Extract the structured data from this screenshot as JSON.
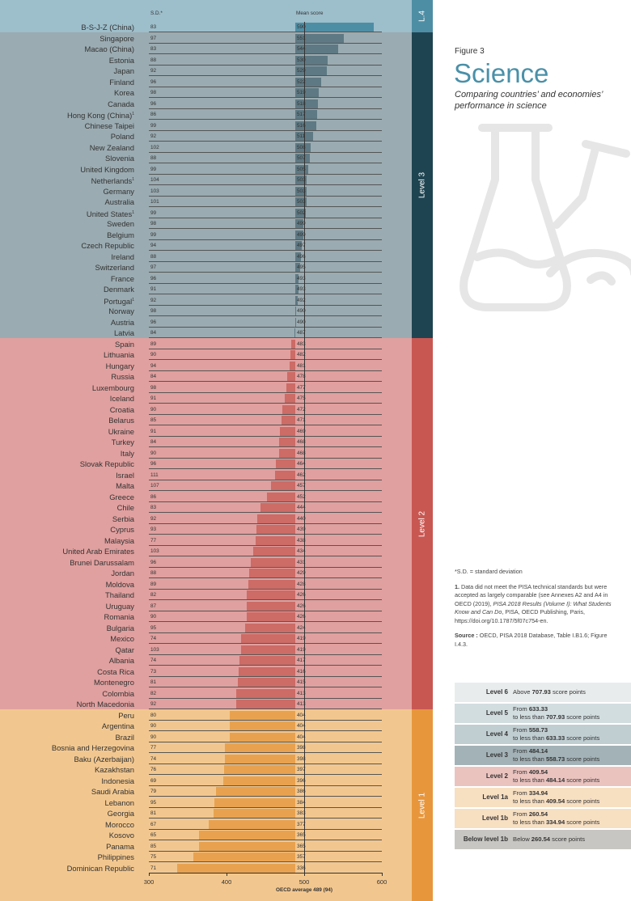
{
  "header": {
    "sd_label": "S.D.*",
    "mean_label": "Mean score"
  },
  "figure": {
    "label": "Figure 3",
    "title": "Science",
    "subtitle": "Comparing countries’ and economies’ performance in science"
  },
  "levels_side": [
    "L.4",
    "Level 3",
    "Level 2",
    "Level 1"
  ],
  "chart_data": {
    "type": "bar",
    "title": "Science",
    "xlabel": "OECD average 489 (94)",
    "xlim": [
      300,
      600
    ],
    "x_ticks": [
      "300",
      "400",
      "500",
      "600"
    ],
    "oecd_average": 489,
    "countries": [
      {
        "name": "B-S-J-Z (China)",
        "sd": "83",
        "mean": 590,
        "level": "L.4",
        "note": false
      },
      {
        "name": "Singapore",
        "sd": "97",
        "mean": 551,
        "level": "Level 3",
        "note": false
      },
      {
        "name": "Macao (China)",
        "sd": "83",
        "mean": 544,
        "level": "Level 3",
        "note": false
      },
      {
        "name": "Estonia",
        "sd": "88",
        "mean": 530,
        "level": "Level 3",
        "note": false
      },
      {
        "name": "Japan",
        "sd": "92",
        "mean": 529,
        "level": "Level 3",
        "note": false
      },
      {
        "name": "Finland",
        "sd": "96",
        "mean": 522,
        "level": "Level 3",
        "note": false
      },
      {
        "name": "Korea",
        "sd": "98",
        "mean": 519,
        "level": "Level 3",
        "note": false
      },
      {
        "name": "Canada",
        "sd": "96",
        "mean": 518,
        "level": "Level 3",
        "note": false
      },
      {
        "name": "Hong Kong (China)",
        "sd": "86",
        "mean": 517,
        "level": "Level 3",
        "note": true
      },
      {
        "name": "Chinese Taipei",
        "sd": "99",
        "mean": 516,
        "level": "Level 3",
        "note": false
      },
      {
        "name": "Poland",
        "sd": "92",
        "mean": 511,
        "level": "Level 3",
        "note": false
      },
      {
        "name": "New Zealand",
        "sd": "102",
        "mean": 508,
        "level": "Level 3",
        "note": false
      },
      {
        "name": "Slovenia",
        "sd": "88",
        "mean": 507,
        "level": "Level 3",
        "note": false
      },
      {
        "name": "United Kingdom",
        "sd": "99",
        "mean": 505,
        "level": "Level 3",
        "note": false
      },
      {
        "name": "Netherlands",
        "sd": "104",
        "mean": 503,
        "level": "Level 3",
        "note": true
      },
      {
        "name": "Germany",
        "sd": "103",
        "mean": 503,
        "level": "Level 3",
        "note": false
      },
      {
        "name": "Australia",
        "sd": "101",
        "mean": 503,
        "level": "Level 3",
        "note": false
      },
      {
        "name": "United States",
        "sd": "99",
        "mean": 502,
        "level": "Level 3",
        "note": true
      },
      {
        "name": "Sweden",
        "sd": "98",
        "mean": 499,
        "level": "Level 3",
        "note": false
      },
      {
        "name": "Belgium",
        "sd": "99",
        "mean": 499,
        "level": "Level 3",
        "note": false
      },
      {
        "name": "Czech Republic",
        "sd": "94",
        "mean": 497,
        "level": "Level 3",
        "note": false
      },
      {
        "name": "Ireland",
        "sd": "88",
        "mean": 496,
        "level": "Level 3",
        "note": false
      },
      {
        "name": "Switzerland",
        "sd": "97",
        "mean": 495,
        "level": "Level 3",
        "note": false
      },
      {
        "name": "France",
        "sd": "96",
        "mean": 493,
        "level": "Level 3",
        "note": false
      },
      {
        "name": "Denmark",
        "sd": "91",
        "mean": 493,
        "level": "Level 3",
        "note": false
      },
      {
        "name": "Portugal",
        "sd": "92",
        "mean": 492,
        "level": "Level 3",
        "note": true
      },
      {
        "name": "Norway",
        "sd": "98",
        "mean": 490,
        "level": "Level 3",
        "note": false
      },
      {
        "name": "Austria",
        "sd": "96",
        "mean": 490,
        "level": "Level 3",
        "note": false
      },
      {
        "name": "Latvia",
        "sd": "84",
        "mean": 487,
        "level": "Level 3",
        "note": false
      },
      {
        "name": "Spain",
        "sd": "89",
        "mean": 483,
        "level": "Level 2",
        "note": false
      },
      {
        "name": "Lithuania",
        "sd": "90",
        "mean": 482,
        "level": "Level 2",
        "note": false
      },
      {
        "name": "Hungary",
        "sd": "94",
        "mean": 481,
        "level": "Level 2",
        "note": false
      },
      {
        "name": "Russia",
        "sd": "84",
        "mean": 478,
        "level": "Level 2",
        "note": false
      },
      {
        "name": "Luxembourg",
        "sd": "98",
        "mean": 477,
        "level": "Level 2",
        "note": false
      },
      {
        "name": "Iceland",
        "sd": "91",
        "mean": 475,
        "level": "Level 2",
        "note": false
      },
      {
        "name": "Croatia",
        "sd": "90",
        "mean": 472,
        "level": "Level 2",
        "note": false
      },
      {
        "name": "Belarus",
        "sd": "85",
        "mean": 471,
        "level": "Level 2",
        "note": false
      },
      {
        "name": "Ukraine",
        "sd": "91",
        "mean": 469,
        "level": "Level 2",
        "note": false
      },
      {
        "name": "Turkey",
        "sd": "84",
        "mean": 468,
        "level": "Level 2",
        "note": false
      },
      {
        "name": "Italy",
        "sd": "90",
        "mean": 468,
        "level": "Level 2",
        "note": false
      },
      {
        "name": "Slovak Republic",
        "sd": "96",
        "mean": 464,
        "level": "Level 2",
        "note": false
      },
      {
        "name": "Israel",
        "sd": "111",
        "mean": 462,
        "level": "Level 2",
        "note": false
      },
      {
        "name": "Malta",
        "sd": "107",
        "mean": 457,
        "level": "Level 2",
        "note": false
      },
      {
        "name": "Greece",
        "sd": "86",
        "mean": 452,
        "level": "Level 2",
        "note": false
      },
      {
        "name": "Chile",
        "sd": "83",
        "mean": 444,
        "level": "Level 2",
        "note": false
      },
      {
        "name": "Serbia",
        "sd": "92",
        "mean": 440,
        "level": "Level 2",
        "note": false
      },
      {
        "name": "Cyprus",
        "sd": "93",
        "mean": 439,
        "level": "Level 2",
        "note": false
      },
      {
        "name": "Malaysia",
        "sd": "77",
        "mean": 438,
        "level": "Level 2",
        "note": false
      },
      {
        "name": "United Arab Emirates",
        "sd": "103",
        "mean": 434,
        "level": "Level 2",
        "note": false
      },
      {
        "name": "Brunei Darussalam",
        "sd": "96",
        "mean": 431,
        "level": "Level 2",
        "note": false
      },
      {
        "name": "Jordan",
        "sd": "88",
        "mean": 429,
        "level": "Level 2",
        "note": false
      },
      {
        "name": "Moldova",
        "sd": "89",
        "mean": 428,
        "level": "Level 2",
        "note": false
      },
      {
        "name": "Thailand",
        "sd": "82",
        "mean": 426,
        "level": "Level 2",
        "note": false
      },
      {
        "name": "Uruguay",
        "sd": "87",
        "mean": 426,
        "level": "Level 2",
        "note": false
      },
      {
        "name": "Romania",
        "sd": "90",
        "mean": 426,
        "level": "Level 2",
        "note": false
      },
      {
        "name": "Bulgaria",
        "sd": "95",
        "mean": 424,
        "level": "Level 2",
        "note": false
      },
      {
        "name": "Mexico",
        "sd": "74",
        "mean": 419,
        "level": "Level 2",
        "note": false
      },
      {
        "name": "Qatar",
        "sd": "103",
        "mean": 419,
        "level": "Level 2",
        "note": false
      },
      {
        "name": "Albania",
        "sd": "74",
        "mean": 417,
        "level": "Level 2",
        "note": false
      },
      {
        "name": "Costa Rica",
        "sd": "73",
        "mean": 416,
        "level": "Level 2",
        "note": false
      },
      {
        "name": "Montenegro",
        "sd": "81",
        "mean": 415,
        "level": "Level 2",
        "note": false
      },
      {
        "name": "Colombia",
        "sd": "82",
        "mean": 413,
        "level": "Level 2",
        "note": false
      },
      {
        "name": "North Macedonia",
        "sd": "92",
        "mean": 413,
        "level": "Level 2",
        "note": false
      },
      {
        "name": "Peru",
        "sd": "80",
        "mean": 404,
        "level": "Level 1",
        "note": false
      },
      {
        "name": "Argentina",
        "sd": "90",
        "mean": 404,
        "level": "Level 1",
        "note": false
      },
      {
        "name": "Brazil",
        "sd": "90",
        "mean": 404,
        "level": "Level 1",
        "note": false
      },
      {
        "name": "Bosnia and Herzegovina",
        "sd": "77",
        "mean": 398,
        "level": "Level 1",
        "note": false
      },
      {
        "name": "Baku (Azerbaijan)",
        "sd": "74",
        "mean": 398,
        "level": "Level 1",
        "note": false
      },
      {
        "name": "Kazakhstan",
        "sd": "76",
        "mean": 397,
        "level": "Level 1",
        "note": false
      },
      {
        "name": "Indonesia",
        "sd": "69",
        "mean": 396,
        "level": "Level 1",
        "note": false
      },
      {
        "name": "Saudi Arabia",
        "sd": "79",
        "mean": 386,
        "level": "Level 1",
        "note": false
      },
      {
        "name": "Lebanon",
        "sd": "95",
        "mean": 384,
        "level": "Level 1",
        "note": false
      },
      {
        "name": "Georgia",
        "sd": "81",
        "mean": 383,
        "level": "Level 1",
        "note": false
      },
      {
        "name": "Morocco",
        "sd": "67",
        "mean": 377,
        "level": "Level 1",
        "note": false
      },
      {
        "name": "Kosovo",
        "sd": "65",
        "mean": 365,
        "level": "Level 1",
        "note": false
      },
      {
        "name": "Panama",
        "sd": "85",
        "mean": 365,
        "level": "Level 1",
        "note": false
      },
      {
        "name": "Philippines",
        "sd": "75",
        "mean": 357,
        "level": "Level 1",
        "note": false
      },
      {
        "name": "Dominican Republic",
        "sd": "71",
        "mean": 336,
        "level": "Level 1",
        "note": false
      }
    ]
  },
  "notes": {
    "sd_note": "*S.D. = standard deviation",
    "note1_num": "1.",
    "note1_a": " Data did not meet the PISA technical standards but were accepted as largely comparable (see Annexes A2 and A4 in OECD (2019), ",
    "note1_italic": "PISA 2018 Results (Volume I): What Students Know and Can Do",
    "note1_b": ", PISA, OECD Publishing, Paris, https://doi.org/10.1787/5f07c754-en.",
    "source_label": "Source :",
    "source_text": " OECD, PISA 2018 Database, Table I.B1.6; Figure I.4.3."
  },
  "legend": [
    {
      "name": "Level 6",
      "pre1": "Above ",
      "v1": "707.93",
      "post1": " score points",
      "pre2": "",
      "v2": "",
      "post2": "",
      "color": "#e9eced"
    },
    {
      "name": "Level 5",
      "pre1": "From ",
      "v1": "633.33",
      "post1": "",
      "pre2": "to less than ",
      "v2": "707.93",
      "post2": " score points",
      "color": "#d2dde0"
    },
    {
      "name": "Level 4",
      "pre1": "From ",
      "v1": "558.73",
      "post1": "",
      "pre2": "to less than ",
      "v2": "633.33",
      "post2": " score points",
      "color": "#c0ced2"
    },
    {
      "name": "Level 3",
      "pre1": "From ",
      "v1": "484.14",
      "post1": "",
      "pre2": "to less than ",
      "v2": "558.73",
      "post2": " score points",
      "color": "#a3b2b7"
    },
    {
      "name": "Level 2",
      "pre1": "From ",
      "v1": "409.54",
      "post1": "",
      "pre2": "to less than ",
      "v2": "484.14",
      "post2": " score points",
      "color": "#eac3bf"
    },
    {
      "name": "Level 1a",
      "pre1": "From ",
      "v1": "334.94",
      "post1": "",
      "pre2": "to less than ",
      "v2": "409.54",
      "post2": " score points",
      "color": "#f7dfc2"
    },
    {
      "name": "Level 1b",
      "pre1": "From ",
      "v1": "260.54",
      "post1": "",
      "pre2": "to less than ",
      "v2": "334.94",
      "post2": " score points",
      "color": "#f7dfc2"
    },
    {
      "name": "Below level 1b",
      "pre1": "Below ",
      "v1": "260.54",
      "post1": " score points",
      "pre2": "",
      "v2": "",
      "post2": "",
      "color": "#c8c6c2"
    }
  ],
  "colors": {
    "l4_bg": "#9dbecb",
    "l4_side": "#4e8ea4",
    "l4_bar": "#4e8ea4",
    "l3_bg": "#9aabb1",
    "l3_side": "#1f4451",
    "l3_bar": "#5e7983",
    "l2_bg": "#e0a09f",
    "l2_side": "#c85752",
    "l2_bar": "#cd6b66",
    "l1_bg": "#f2c78f",
    "l1_side": "#e8963c",
    "l1_bar": "#e8a24f"
  }
}
